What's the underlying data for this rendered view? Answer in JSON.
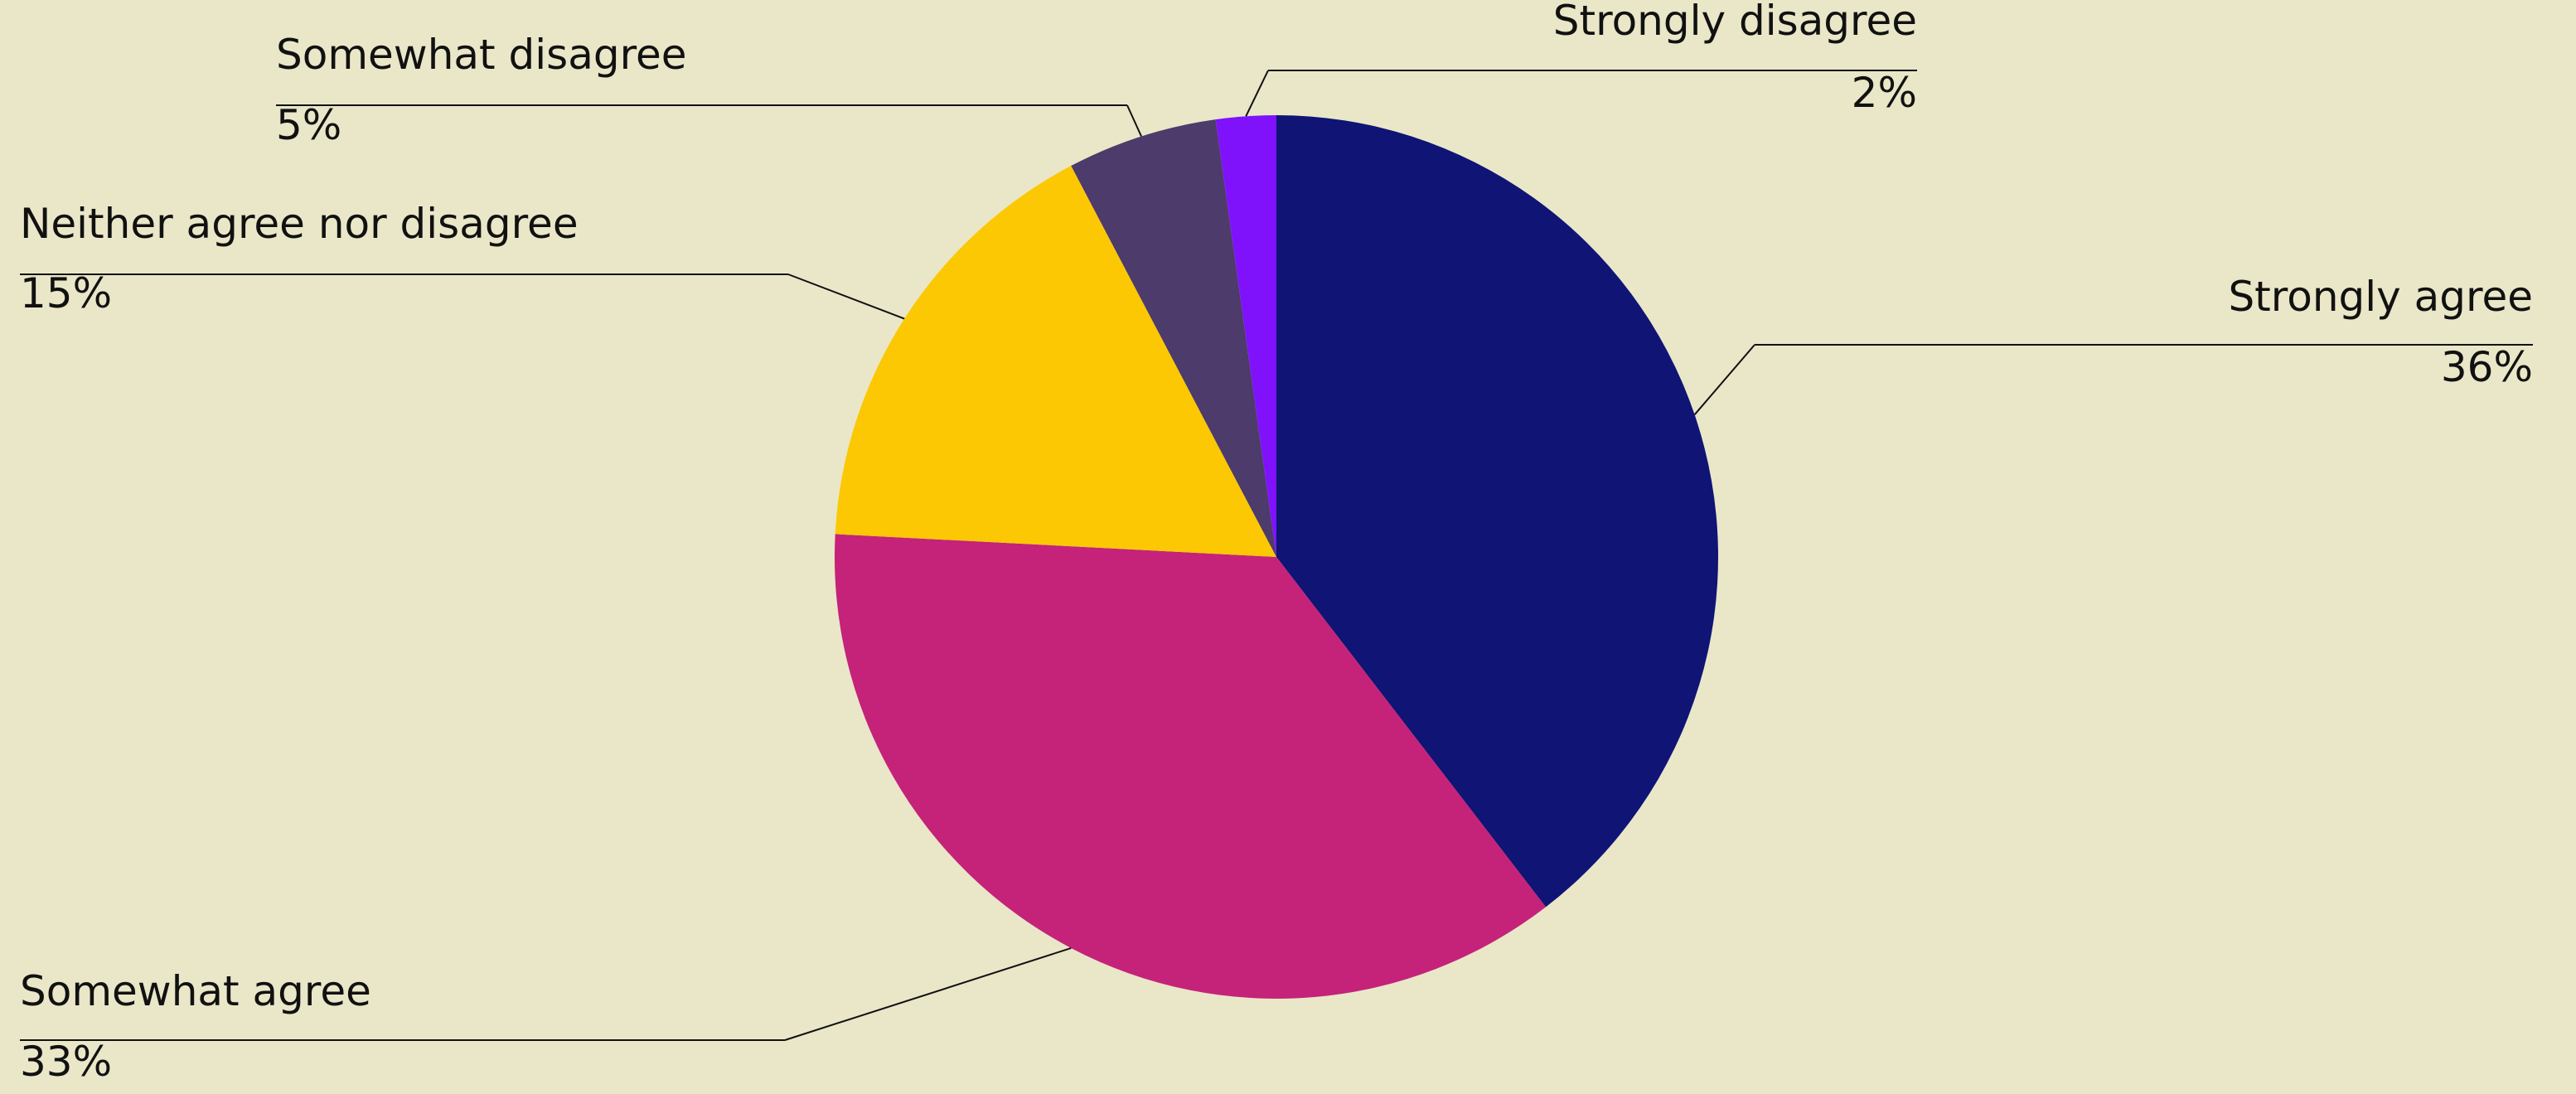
{
  "chart_data": {
    "type": "pie",
    "categories": [
      "Strongly agree",
      "Somewhat agree",
      "Neither agree nor disagree",
      "Somewhat disagree",
      "Strongly disagree"
    ],
    "values": [
      36,
      33,
      15,
      5,
      2
    ],
    "value_labels": [
      "36%",
      "33%",
      "15%",
      "5%",
      "2%"
    ],
    "colors": [
      "#0f1475",
      "#c5227a",
      "#fcc804",
      "#4c3b6b",
      "#7f12fb"
    ]
  }
}
